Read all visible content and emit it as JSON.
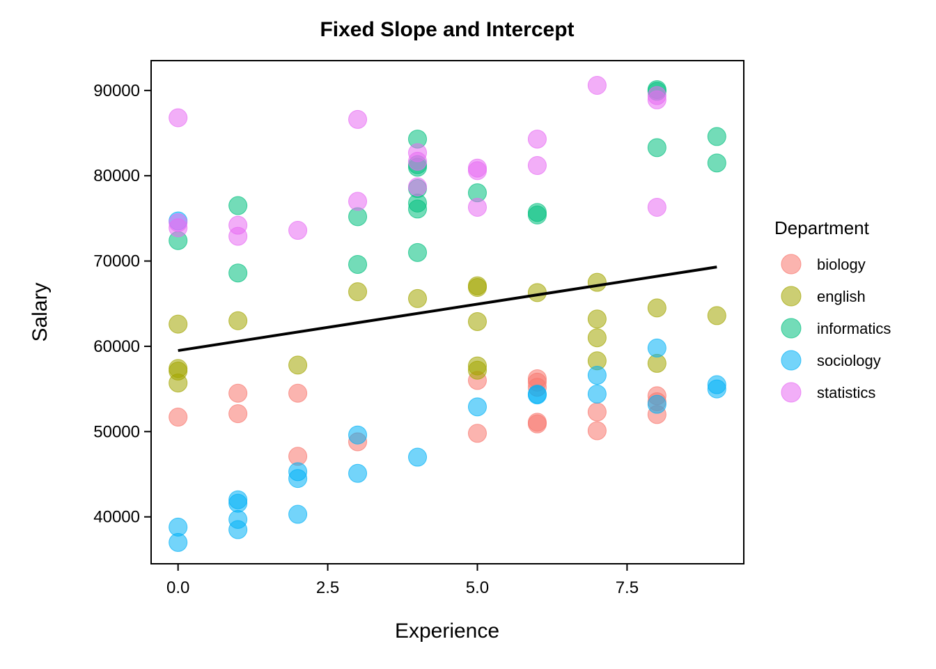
{
  "chart_data": {
    "type": "scatter",
    "title": "Fixed Slope and Intercept",
    "xlabel": "Experience",
    "ylabel": "Salary",
    "xlim": [
      -0.45,
      9.45
    ],
    "ylim": [
      34500,
      93500
    ],
    "x_ticks": [
      0.0,
      2.5,
      5.0,
      7.5
    ],
    "x_tick_labels": [
      "0.0",
      "2.5",
      "5.0",
      "7.5"
    ],
    "y_ticks": [
      40000,
      50000,
      60000,
      70000,
      80000,
      90000
    ],
    "y_tick_labels": [
      "40000",
      "50000",
      "60000",
      "70000",
      "80000",
      "90000"
    ],
    "grid": false,
    "legend": {
      "title": "Department",
      "placement": "right"
    },
    "fit_line": {
      "x": [
        0,
        9
      ],
      "y": [
        59500,
        69300
      ],
      "color": "#000000"
    },
    "series": [
      {
        "name": "biology",
        "color": "#F8766D",
        "points": [
          [
            0,
            51700
          ],
          [
            1,
            54500
          ],
          [
            1,
            52100
          ],
          [
            2,
            54500
          ],
          [
            2,
            47100
          ],
          [
            3,
            48800
          ],
          [
            5,
            56000
          ],
          [
            5,
            49800
          ],
          [
            6,
            56200
          ],
          [
            6,
            55800
          ],
          [
            6,
            55200
          ],
          [
            6,
            51100
          ],
          [
            6,
            50900
          ],
          [
            7,
            52300
          ],
          [
            7,
            50100
          ],
          [
            8,
            54200
          ],
          [
            8,
            53500
          ],
          [
            8,
            52000
          ]
        ]
      },
      {
        "name": "english",
        "color": "#A3A500",
        "points": [
          [
            0,
            62600
          ],
          [
            0,
            57400
          ],
          [
            0,
            57100
          ],
          [
            0,
            55700
          ],
          [
            1,
            63000
          ],
          [
            2,
            57800
          ],
          [
            3,
            66400
          ],
          [
            4,
            65600
          ],
          [
            5,
            67100
          ],
          [
            5,
            66900
          ],
          [
            5,
            62900
          ],
          [
            5,
            57700
          ],
          [
            5,
            57200
          ],
          [
            6,
            66300
          ],
          [
            7,
            67500
          ],
          [
            7,
            63200
          ],
          [
            7,
            61000
          ],
          [
            7,
            58300
          ],
          [
            8,
            64500
          ],
          [
            8,
            58000
          ],
          [
            9,
            63600
          ]
        ]
      },
      {
        "name": "informatics",
        "color": "#00BF7D",
        "points": [
          [
            0,
            72400
          ],
          [
            1,
            76500
          ],
          [
            1,
            68600
          ],
          [
            3,
            75200
          ],
          [
            3,
            69600
          ],
          [
            4,
            84300
          ],
          [
            4,
            81300
          ],
          [
            4,
            81000
          ],
          [
            4,
            78500
          ],
          [
            4,
            76800
          ],
          [
            4,
            76100
          ],
          [
            4,
            71000
          ],
          [
            5,
            78000
          ],
          [
            6,
            75700
          ],
          [
            6,
            75400
          ],
          [
            8,
            90100
          ],
          [
            8,
            89900
          ],
          [
            8,
            83300
          ],
          [
            9,
            84600
          ],
          [
            9,
            81500
          ]
        ]
      },
      {
        "name": "sociology",
        "color": "#00B0F6",
        "points": [
          [
            0,
            74700
          ],
          [
            0,
            38800
          ],
          [
            0,
            37000
          ],
          [
            1,
            42000
          ],
          [
            1,
            41600
          ],
          [
            1,
            39700
          ],
          [
            1,
            38500
          ],
          [
            2,
            45300
          ],
          [
            2,
            44500
          ],
          [
            2,
            40300
          ],
          [
            3,
            49600
          ],
          [
            3,
            45100
          ],
          [
            4,
            47000
          ],
          [
            5,
            52900
          ],
          [
            6,
            54400
          ],
          [
            6,
            54300
          ],
          [
            7,
            56600
          ],
          [
            7,
            54400
          ],
          [
            8,
            59800
          ],
          [
            8,
            53200
          ],
          [
            9,
            55500
          ],
          [
            9,
            55000
          ]
        ]
      },
      {
        "name": "statistics",
        "color": "#E76BF3",
        "points": [
          [
            0,
            86800
          ],
          [
            0,
            74500
          ],
          [
            0,
            73900
          ],
          [
            1,
            74200
          ],
          [
            1,
            72900
          ],
          [
            2,
            73600
          ],
          [
            3,
            86600
          ],
          [
            3,
            77000
          ],
          [
            4,
            82700
          ],
          [
            4,
            81700
          ],
          [
            4,
            78700
          ],
          [
            5,
            80900
          ],
          [
            5,
            80600
          ],
          [
            5,
            76300
          ],
          [
            6,
            84300
          ],
          [
            6,
            81200
          ],
          [
            7,
            90600
          ],
          [
            8,
            89400
          ],
          [
            8,
            88900
          ],
          [
            8,
            76300
          ]
        ]
      }
    ]
  }
}
